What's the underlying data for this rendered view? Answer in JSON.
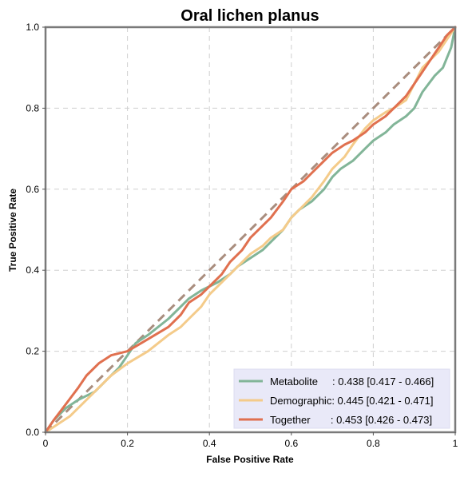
{
  "chart_data": {
    "type": "line",
    "title": "Oral lichen planus",
    "xlabel": "False Positive Rate",
    "ylabel": "True Positive Rate",
    "xlim": [
      0,
      1
    ],
    "ylim": [
      0,
      1
    ],
    "xticks": [
      "0",
      "0.2",
      "0.4",
      "0.6",
      "0.8",
      "1"
    ],
    "yticks": [
      "0.0",
      "0.2",
      "0.4",
      "0.6",
      "0.8",
      "1.0"
    ],
    "grid": true,
    "legend_position": "bottom-right",
    "reference_line": {
      "x": [
        0,
        1
      ],
      "y": [
        0,
        1
      ],
      "style": "dashed",
      "color": "#a98d7e"
    },
    "series": [
      {
        "name": "Metabolite",
        "label": "Metabolite     : 0.438 [0.417 - 0.466]",
        "color": "#82b598",
        "x": [
          0,
          0.02,
          0.05,
          0.08,
          0.12,
          0.15,
          0.18,
          0.2,
          0.22,
          0.25,
          0.3,
          0.33,
          0.35,
          0.38,
          0.4,
          0.42,
          0.45,
          0.47,
          0.5,
          0.53,
          0.55,
          0.58,
          0.6,
          0.62,
          0.65,
          0.68,
          0.7,
          0.72,
          0.75,
          0.78,
          0.8,
          0.83,
          0.85,
          0.88,
          0.9,
          0.92,
          0.95,
          0.97,
          0.99,
          1
        ],
        "y": [
          0,
          0.03,
          0.06,
          0.08,
          0.1,
          0.13,
          0.16,
          0.19,
          0.22,
          0.24,
          0.28,
          0.31,
          0.33,
          0.35,
          0.36,
          0.37,
          0.39,
          0.41,
          0.43,
          0.45,
          0.47,
          0.5,
          0.53,
          0.55,
          0.57,
          0.6,
          0.63,
          0.65,
          0.67,
          0.7,
          0.72,
          0.74,
          0.76,
          0.78,
          0.8,
          0.84,
          0.88,
          0.9,
          0.95,
          1
        ]
      },
      {
        "name": "Demographic",
        "label": "Demographic: 0.445 [0.421 - 0.471]",
        "color": "#f4cb8a",
        "x": [
          0,
          0.03,
          0.06,
          0.08,
          0.1,
          0.13,
          0.16,
          0.2,
          0.25,
          0.3,
          0.33,
          0.35,
          0.38,
          0.4,
          0.43,
          0.45,
          0.48,
          0.5,
          0.53,
          0.55,
          0.58,
          0.6,
          0.63,
          0.65,
          0.68,
          0.7,
          0.73,
          0.75,
          0.78,
          0.8,
          0.83,
          0.85,
          0.88,
          0.9,
          0.92,
          0.94,
          0.96,
          0.98,
          1
        ],
        "y": [
          0,
          0.02,
          0.04,
          0.06,
          0.08,
          0.11,
          0.14,
          0.17,
          0.2,
          0.24,
          0.26,
          0.28,
          0.31,
          0.34,
          0.37,
          0.39,
          0.42,
          0.44,
          0.46,
          0.48,
          0.5,
          0.53,
          0.56,
          0.58,
          0.62,
          0.65,
          0.68,
          0.71,
          0.75,
          0.77,
          0.79,
          0.8,
          0.82,
          0.86,
          0.9,
          0.92,
          0.94,
          0.97,
          1
        ]
      },
      {
        "name": "Together",
        "label": "Together       : 0.453 [0.426 - 0.473]",
        "color": "#e0704f",
        "x": [
          0,
          0.02,
          0.05,
          0.08,
          0.1,
          0.13,
          0.16,
          0.2,
          0.25,
          0.3,
          0.33,
          0.35,
          0.38,
          0.4,
          0.43,
          0.45,
          0.48,
          0.5,
          0.53,
          0.55,
          0.58,
          0.6,
          0.63,
          0.65,
          0.68,
          0.7,
          0.73,
          0.75,
          0.78,
          0.8,
          0.83,
          0.85,
          0.88,
          0.9,
          0.92,
          0.94,
          0.96,
          0.98,
          1
        ],
        "y": [
          0,
          0.03,
          0.07,
          0.11,
          0.14,
          0.17,
          0.19,
          0.2,
          0.23,
          0.26,
          0.29,
          0.32,
          0.34,
          0.36,
          0.39,
          0.42,
          0.45,
          0.48,
          0.51,
          0.53,
          0.57,
          0.6,
          0.62,
          0.64,
          0.67,
          0.69,
          0.71,
          0.72,
          0.74,
          0.76,
          0.78,
          0.8,
          0.83,
          0.86,
          0.89,
          0.92,
          0.95,
          0.98,
          1
        ]
      }
    ]
  }
}
